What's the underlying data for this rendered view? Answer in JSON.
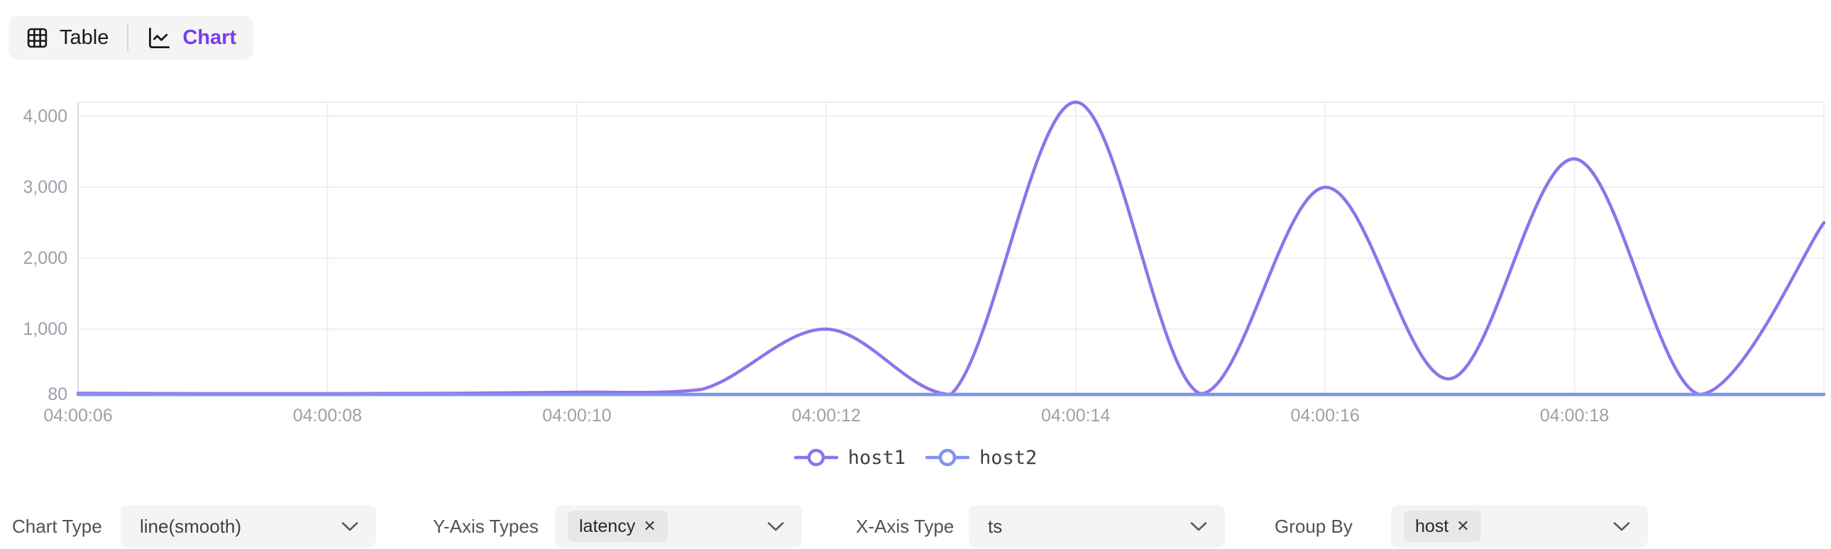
{
  "view_toggle": {
    "table_label": "Table",
    "chart_label": "Chart",
    "active_tab": "Chart",
    "accent_color": "#7c3aed"
  },
  "chart_data": {
    "type": "line",
    "smooth": true,
    "title": "",
    "xlabel": "",
    "ylabel": "",
    "grid": true,
    "legend_position": "bottom",
    "xlim": [
      6,
      20
    ],
    "ylim": [
      80,
      4200
    ],
    "points_t": [
      6,
      7,
      8,
      9,
      10,
      11,
      12,
      13,
      14,
      15,
      16,
      17,
      18,
      19,
      20
    ],
    "series": [
      {
        "name": "host1",
        "color": "#8d74ea",
        "values": [
          95,
          90,
          90,
          95,
          110,
          150,
          1000,
          80,
          4200,
          90,
          3000,
          300,
          3400,
          80,
          2500
        ]
      },
      {
        "name": "host2",
        "color": "#7d93f1",
        "values": [
          80,
          80,
          80,
          80,
          80,
          80,
          80,
          80,
          80,
          80,
          80,
          80,
          80,
          80,
          80
        ]
      }
    ],
    "xticks": [
      {
        "t": 6,
        "label": "04:00:06"
      },
      {
        "t": 8,
        "label": "04:00:08"
      },
      {
        "t": 10,
        "label": "04:00:10"
      },
      {
        "t": 12,
        "label": "04:00:12"
      },
      {
        "t": 14,
        "label": "04:00:14"
      },
      {
        "t": 16,
        "label": "04:00:16"
      },
      {
        "t": 18,
        "label": "04:00:18"
      },
      {
        "t": 20,
        "label": ""
      }
    ],
    "yticks": [
      {
        "v": 80,
        "label": "80"
      },
      {
        "v": 1000,
        "label": "1,000"
      },
      {
        "v": 2000,
        "label": "2,000"
      },
      {
        "v": 3000,
        "label": "3,000"
      },
      {
        "v": 4000,
        "label": "4,000"
      }
    ],
    "axis_label_color": "#9ca0ab",
    "grid_color": "#eeeef3",
    "axis_line_color": "#dadae2"
  },
  "controls": {
    "chart_type": {
      "label": "Chart Type",
      "value": "line(smooth)"
    },
    "y_axis_types": {
      "label": "Y-Axis Types",
      "tags": [
        "latency"
      ]
    },
    "x_axis_type": {
      "label": "X-Axis Type",
      "value": "ts"
    },
    "group_by": {
      "label": "Group By",
      "tags": [
        "host"
      ]
    }
  },
  "icons": {
    "table": "table-grid",
    "chart": "line-chart",
    "select_chevron": "chevron-down",
    "tag_remove": "✕"
  }
}
